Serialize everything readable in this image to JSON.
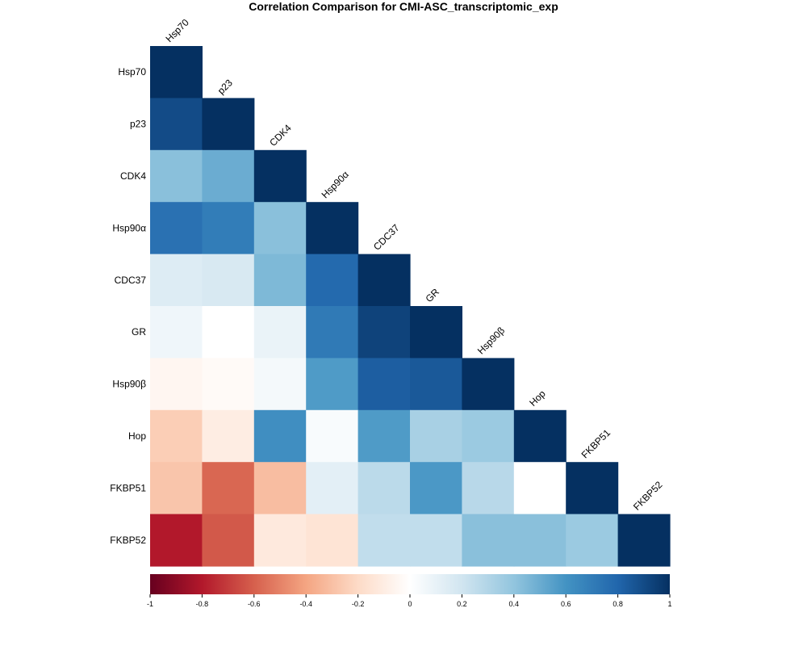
{
  "chart_data": {
    "type": "heatmap",
    "title": "Correlation Comparison for CMI-ASC_transcriptomic_exp",
    "labels": [
      "Hsp70",
      "p23",
      "CDK4",
      "Hsp90α",
      "CDC37",
      "GR",
      "Hsp90β",
      "Hop",
      "FKBP51",
      "FKBP52"
    ],
    "matrix": [
      [
        1.0
      ],
      [
        0.9,
        1.0
      ],
      [
        0.42,
        0.5,
        1.0
      ],
      [
        0.75,
        0.7,
        0.42,
        1.0
      ],
      [
        0.15,
        0.17,
        0.45,
        0.78,
        1.0
      ],
      [
        0.07,
        0.0,
        0.09,
        0.71,
        0.93,
        1.0
      ],
      [
        -0.05,
        -0.03,
        0.05,
        0.57,
        0.83,
        0.85,
        1.0
      ],
      [
        -0.25,
        -0.1,
        0.62,
        0.03,
        0.57,
        0.33,
        0.37,
        1.0
      ],
      [
        -0.28,
        -0.58,
        -0.31,
        0.12,
        0.27,
        0.58,
        0.28,
        0.0,
        1.0
      ],
      [
        -0.8,
        -0.62,
        -0.12,
        -0.15,
        0.25,
        0.25,
        0.42,
        0.42,
        0.37,
        1.0
      ]
    ],
    "colorbar": {
      "range": [
        -1,
        1
      ],
      "ticks": [
        "-1",
        "-0.8",
        "-0.6",
        "-0.4",
        "-0.2",
        "0",
        "0.2",
        "0.4",
        "0.6",
        "0.8",
        "1"
      ],
      "colors": [
        "#67001f",
        "#b2182b",
        "#d6604d",
        "#f4a582",
        "#fddbc7",
        "#ffffff",
        "#d1e5f0",
        "#92c5de",
        "#4393c3",
        "#2166ac",
        "#053061"
      ]
    }
  }
}
